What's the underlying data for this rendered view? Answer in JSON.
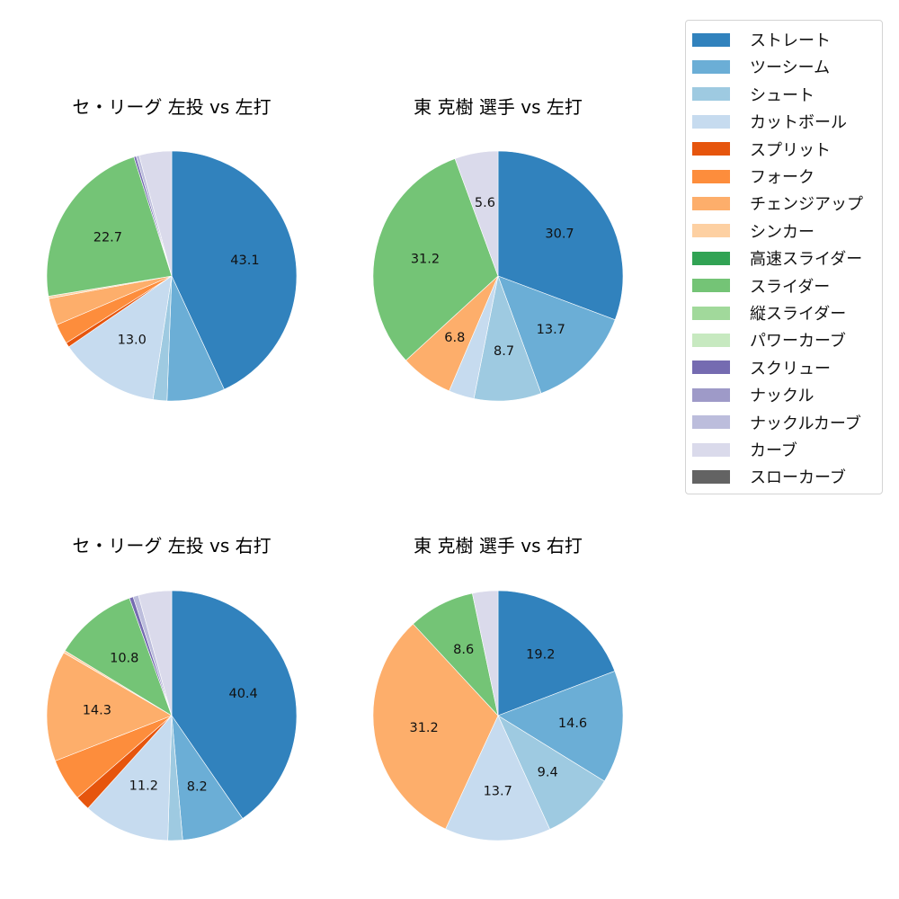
{
  "legend": {
    "items": [
      {
        "label": "ストレート",
        "color": "#3182bd"
      },
      {
        "label": "ツーシーム",
        "color": "#6baed6"
      },
      {
        "label": "シュート",
        "color": "#9ecae1"
      },
      {
        "label": "カットボール",
        "color": "#c6dbef"
      },
      {
        "label": "スプリット",
        "color": "#e6550d"
      },
      {
        "label": "フォーク",
        "color": "#fd8d3c"
      },
      {
        "label": "チェンジアップ",
        "color": "#fdae6b"
      },
      {
        "label": "シンカー",
        "color": "#fdd0a2"
      },
      {
        "label": "高速スライダー",
        "color": "#31a354"
      },
      {
        "label": "スライダー",
        "color": "#74c476"
      },
      {
        "label": "縦スライダー",
        "color": "#a1d99b"
      },
      {
        "label": "パワーカーブ",
        "color": "#c7e9c0"
      },
      {
        "label": "スクリュー",
        "color": "#756bb1"
      },
      {
        "label": "ナックル",
        "color": "#9e9ac8"
      },
      {
        "label": "ナックルカーブ",
        "color": "#bcbddc"
      },
      {
        "label": "カーブ",
        "color": "#dadaeb"
      },
      {
        "label": "スローカーブ",
        "color": "#636363"
      }
    ]
  },
  "chart_data": [
    {
      "type": "pie",
      "title": "セ・リーグ 左投 vs 左打",
      "categories": [
        "ストレート",
        "ツーシーム",
        "シュート",
        "カットボール",
        "スプリット",
        "フォーク",
        "チェンジアップ",
        "シンカー",
        "スライダー",
        "スクリュー",
        "ナックルカーブ",
        "カーブ"
      ],
      "values": [
        43.1,
        7.5,
        1.8,
        13.0,
        0.6,
        2.6,
        3.5,
        0.3,
        22.7,
        0.3,
        0.4,
        4.2
      ],
      "labels_shown": [
        "43.1",
        "",
        "",
        "13.0",
        "",
        "",
        "",
        "",
        "22.7",
        "",
        "",
        ""
      ],
      "start_angle": 90,
      "direction": "clockwise"
    },
    {
      "type": "pie",
      "title": "東 克樹 選手 vs 左打",
      "categories": [
        "ストレート",
        "ツーシーム",
        "シュート",
        "カットボール",
        "チェンジアップ",
        "スライダー",
        "カーブ"
      ],
      "values": [
        30.7,
        13.7,
        8.7,
        3.3,
        6.8,
        31.2,
        5.6
      ],
      "labels_shown": [
        "30.7",
        "13.7",
        "8.7",
        "",
        "6.8",
        "31.2",
        "5.6"
      ],
      "start_angle": 90,
      "direction": "clockwise"
    },
    {
      "type": "pie",
      "title": "セ・リーグ 左投 vs 右打",
      "categories": [
        "ストレート",
        "ツーシーム",
        "シュート",
        "カットボール",
        "スプリット",
        "フォーク",
        "チェンジアップ",
        "シンカー",
        "スライダー",
        "スクリュー",
        "ナックルカーブ",
        "カーブ"
      ],
      "values": [
        40.4,
        8.2,
        1.9,
        11.2,
        1.9,
        5.5,
        14.3,
        0.3,
        10.8,
        0.5,
        0.7,
        4.3
      ],
      "labels_shown": [
        "40.4",
        "8.2",
        "",
        "11.2",
        "",
        "",
        "14.3",
        "",
        "10.8",
        "",
        "",
        ""
      ],
      "start_angle": 90,
      "direction": "clockwise"
    },
    {
      "type": "pie",
      "title": "東 克樹 選手 vs 右打",
      "categories": [
        "ストレート",
        "ツーシーム",
        "シュート",
        "カットボール",
        "チェンジアップ",
        "スライダー",
        "カーブ"
      ],
      "values": [
        19.2,
        14.6,
        9.4,
        13.7,
        31.2,
        8.6,
        3.3
      ],
      "labels_shown": [
        "19.2",
        "14.6",
        "9.4",
        "13.7",
        "31.2",
        "8.6",
        ""
      ],
      "start_angle": 90,
      "direction": "clockwise"
    }
  ],
  "panels": [
    {
      "title": "セ・リーグ 左投 vs 左打"
    },
    {
      "title": "東 克樹 選手 vs 左打"
    },
    {
      "title": "セ・リーグ 左投 vs 右打"
    },
    {
      "title": "東 克樹 選手 vs 右打"
    }
  ]
}
